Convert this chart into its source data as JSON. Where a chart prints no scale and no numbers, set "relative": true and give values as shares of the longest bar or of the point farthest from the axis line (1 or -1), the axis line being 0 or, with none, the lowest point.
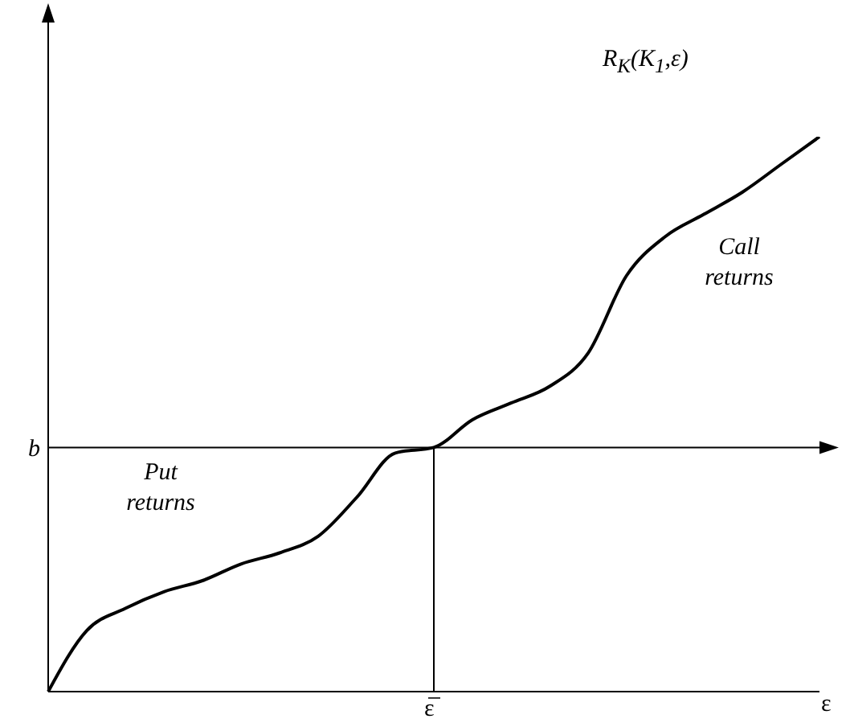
{
  "chart_data": {
    "type": "line",
    "relative": true,
    "xlabel": "ε",
    "marker": "none",
    "line_style": "solid",
    "categories": [
      null,
      null,
      null,
      null,
      null,
      null,
      null,
      null,
      null,
      null,
      null,
      null,
      null,
      null,
      null,
      null,
      null,
      null,
      null,
      null,
      null
    ],
    "series": [
      {
        "color": "#000000",
        "values": [
          0,
          0.11,
          0.15,
          0.18,
          0.2,
          0.23,
          0.25,
          0.28,
          0.35,
          0.43,
          0.44,
          0.49,
          0.52,
          0.55,
          0.61,
          0.75,
          0.82,
          0.86,
          0.9,
          0.95,
          1.0
        ]
      }
    ],
    "ref_lines": [
      {
        "axis": "y",
        "value": 0.44,
        "label": "b",
        "color": "#000000"
      }
    ],
    "annotations": [
      "R$_{K}$(K$_{1}$,ε)",
      "Call returns",
      "Put returns",
      "ε̅"
    ]
  }
}
